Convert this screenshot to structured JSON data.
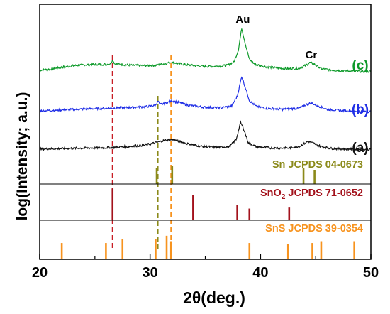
{
  "chart_data": {
    "type": "line",
    "xlabel": "2θ(deg.)",
    "ylabel": "log(Intensity; a.u.)",
    "xlim": [
      20,
      50
    ],
    "xticks": [
      20,
      30,
      40,
      50
    ],
    "grid": false,
    "series": [
      {
        "name": "(c)",
        "color": "#0e9a2a",
        "points": [
          [
            20,
            0.36
          ],
          [
            21,
            0.4
          ],
          [
            22,
            0.48
          ],
          [
            23,
            0.54
          ],
          [
            24,
            0.58
          ],
          [
            25,
            0.6
          ],
          [
            26,
            0.6
          ],
          [
            26.4,
            0.62
          ],
          [
            26.6,
            0.8
          ],
          [
            26.8,
            0.62
          ],
          [
            27.5,
            0.59
          ],
          [
            28.5,
            0.56
          ],
          [
            29.5,
            0.55
          ],
          [
            30.5,
            0.56
          ],
          [
            31.2,
            0.62
          ],
          [
            31.8,
            0.68
          ],
          [
            32.3,
            0.66
          ],
          [
            33,
            0.6
          ],
          [
            34,
            0.55
          ],
          [
            35,
            0.52
          ],
          [
            36,
            0.52
          ],
          [
            37,
            0.56
          ],
          [
            37.6,
            0.7
          ],
          [
            38.0,
            1.2
          ],
          [
            38.3,
            2.1
          ],
          [
            38.6,
            1.5
          ],
          [
            39.0,
            0.8
          ],
          [
            39.5,
            0.6
          ],
          [
            40.5,
            0.5
          ],
          [
            41.5,
            0.45
          ],
          [
            42.5,
            0.42
          ],
          [
            43.5,
            0.44
          ],
          [
            44.1,
            0.56
          ],
          [
            44.5,
            0.68
          ],
          [
            44.9,
            0.6
          ],
          [
            45.5,
            0.42
          ],
          [
            46.5,
            0.36
          ],
          [
            48,
            0.32
          ],
          [
            50,
            0.3
          ]
        ]
      },
      {
        "name": "(b)",
        "color": "#1f2ee6",
        "points": [
          [
            20,
            0.3
          ],
          [
            22,
            0.33
          ],
          [
            24,
            0.37
          ],
          [
            26,
            0.4
          ],
          [
            28,
            0.43
          ],
          [
            29.5,
            0.46
          ],
          [
            30.5,
            0.52
          ],
          [
            30.7,
            0.72
          ],
          [
            30.9,
            0.56
          ],
          [
            31.5,
            0.62
          ],
          [
            32.0,
            0.7
          ],
          [
            32.6,
            0.64
          ],
          [
            33.5,
            0.52
          ],
          [
            35,
            0.44
          ],
          [
            36.5,
            0.42
          ],
          [
            37.4,
            0.5
          ],
          [
            37.9,
            0.9
          ],
          [
            38.3,
            1.72
          ],
          [
            38.6,
            1.3
          ],
          [
            39.0,
            0.72
          ],
          [
            39.6,
            0.48
          ],
          [
            40.5,
            0.4
          ],
          [
            42,
            0.36
          ],
          [
            43.5,
            0.4
          ],
          [
            44.2,
            0.56
          ],
          [
            44.6,
            0.62
          ],
          [
            45.2,
            0.5
          ],
          [
            46,
            0.36
          ],
          [
            47.5,
            0.3
          ],
          [
            50,
            0.26
          ]
        ]
      },
      {
        "name": "(a)",
        "color": "#111111",
        "points": [
          [
            20,
            0.3
          ],
          [
            22,
            0.32
          ],
          [
            24,
            0.34
          ],
          [
            26,
            0.36
          ],
          [
            28,
            0.4
          ],
          [
            29.5,
            0.46
          ],
          [
            30.5,
            0.56
          ],
          [
            31.3,
            0.66
          ],
          [
            31.8,
            0.7
          ],
          [
            32.4,
            0.66
          ],
          [
            33.2,
            0.54
          ],
          [
            34.5,
            0.42
          ],
          [
            36,
            0.37
          ],
          [
            37.2,
            0.4
          ],
          [
            37.8,
            0.7
          ],
          [
            38.2,
            1.4
          ],
          [
            38.5,
            1.1
          ],
          [
            38.9,
            0.56
          ],
          [
            39.6,
            0.4
          ],
          [
            41,
            0.34
          ],
          [
            42.5,
            0.34
          ],
          [
            43.6,
            0.42
          ],
          [
            44.3,
            0.62
          ],
          [
            44.8,
            0.54
          ],
          [
            45.5,
            0.4
          ],
          [
            46.5,
            0.32
          ],
          [
            48,
            0.3
          ],
          [
            50,
            0.28
          ]
        ]
      }
    ],
    "annotations": [
      {
        "text": "Au",
        "x": 38.4
      },
      {
        "text": "Cr",
        "x": 44.6
      },
      {
        "text": "(c)",
        "color": "#0e9a2a"
      },
      {
        "text": "(b)",
        "color": "#1f2ee6"
      },
      {
        "text": "(a)",
        "color": "#111111"
      }
    ],
    "reference_patterns": [
      {
        "label_main": "Sn",
        "label_sub": "",
        "label_rest": " JCPDS 04-0673",
        "color": "#8b8a1a",
        "positions": [
          30.6,
          32.0,
          43.9,
          44.9
        ],
        "heights": [
          0.45,
          0.5,
          0.45,
          0.4
        ]
      },
      {
        "label_main": "SnO",
        "label_sub": "2",
        "label_rest": " JCPDS 71-0652",
        "color": "#a3121c",
        "positions": [
          26.6,
          33.9,
          37.9,
          39.0,
          42.6
        ],
        "heights": [
          0.95,
          0.75,
          0.45,
          0.35,
          0.38
        ]
      },
      {
        "label_main": "SnS",
        "label_sub": "",
        "label_rest": " JCPDS 39-0354",
        "color": "#f7931e",
        "positions": [
          22.0,
          26.0,
          27.5,
          30.5,
          31.5,
          31.9,
          39.0,
          42.5,
          44.7,
          45.5,
          48.5
        ],
        "heights": [
          0.45,
          0.45,
          0.55,
          0.55,
          0.65,
          0.5,
          0.45,
          0.42,
          0.45,
          0.5,
          0.5
        ]
      }
    ],
    "dashed_guides": [
      {
        "x": 26.6,
        "color": "#c81d25",
        "from": "c"
      },
      {
        "x": 30.7,
        "color": "#8b8a1a",
        "from": "b"
      },
      {
        "x": 31.9,
        "color": "#f7931e",
        "from": "c"
      }
    ]
  }
}
